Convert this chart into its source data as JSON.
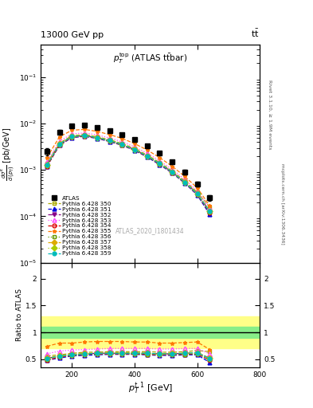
{
  "title_left": "13000 GeV pp",
  "title_right": "tt̅",
  "panel_title": "$p_T^{\\mathrm{top}}$ (ATLAS t$\\bar{\\mathrm{t}}$bar)",
  "xlabel": "$p_T^{t,1}$ [GeV]",
  "watermark": "ATLAS_2020_I1801434",
  "right_label_top": "Rivet 3.1.10, ≥ 1.9M events",
  "arxiv_label": "mcplots.cern.ch [arXiv:1306.3436]",
  "pt_bins": [
    120,
    160,
    200,
    240,
    280,
    320,
    360,
    400,
    440,
    480,
    520,
    560,
    600,
    640
  ],
  "atlas_vals": [
    0.0025,
    0.0065,
    0.009,
    0.0092,
    0.0082,
    0.007,
    0.0058,
    0.0045,
    0.0033,
    0.0023,
    0.0015,
    0.0009,
    0.0005,
    0.00025
  ],
  "atlas_err_lo": [
    0.0004,
    0.0007,
    0.0008,
    0.0008,
    0.0007,
    0.0006,
    0.0005,
    0.0004,
    0.0003,
    0.0002,
    0.00015,
    0.0001,
    6e-05,
    3e-05
  ],
  "atlas_err_hi": [
    0.0004,
    0.0007,
    0.0008,
    0.0008,
    0.0007,
    0.0006,
    0.0005,
    0.0004,
    0.0003,
    0.0002,
    0.00015,
    0.0001,
    6e-05,
    3e-05
  ],
  "models": [
    {
      "label": "Pythia 6.428 350",
      "color": "#aaaa00",
      "marker": "s",
      "markerfacecolor": "none",
      "linestyle": "--",
      "vals": [
        0.0014,
        0.0038,
        0.0055,
        0.0058,
        0.0052,
        0.0045,
        0.0037,
        0.0029,
        0.0021,
        0.00145,
        0.00095,
        0.00058,
        0.00033,
        0.00016
      ],
      "ratio": [
        0.56,
        0.58,
        0.61,
        0.63,
        0.63,
        0.64,
        0.64,
        0.64,
        0.64,
        0.63,
        0.63,
        0.64,
        0.66,
        0.64
      ]
    },
    {
      "label": "Pythia 6.428 351",
      "color": "#0000dd",
      "marker": "^",
      "markerfacecolor": "#0000dd",
      "linestyle": "--",
      "vals": [
        0.0012,
        0.0034,
        0.005,
        0.0053,
        0.0048,
        0.0041,
        0.0034,
        0.00265,
        0.0019,
        0.0013,
        0.00086,
        0.00052,
        0.00029,
        0.00011
      ],
      "ratio": [
        0.48,
        0.52,
        0.56,
        0.57,
        0.58,
        0.59,
        0.59,
        0.59,
        0.58,
        0.57,
        0.57,
        0.58,
        0.58,
        0.44
      ]
    },
    {
      "label": "Pythia 6.428 352",
      "color": "#880088",
      "marker": "v",
      "markerfacecolor": "#880088",
      "linestyle": "-.",
      "vals": [
        0.0013,
        0.0036,
        0.0052,
        0.0055,
        0.005,
        0.0043,
        0.00355,
        0.00275,
        0.002,
        0.00138,
        0.0009,
        0.00055,
        0.00031,
        0.00013
      ],
      "ratio": [
        0.52,
        0.55,
        0.58,
        0.6,
        0.61,
        0.61,
        0.61,
        0.61,
        0.61,
        0.6,
        0.6,
        0.61,
        0.62,
        0.52
      ]
    },
    {
      "label": "Pythia 6.428 353",
      "color": "#ff44ff",
      "marker": "^",
      "markerfacecolor": "none",
      "linestyle": ":",
      "vals": [
        0.0015,
        0.0042,
        0.006,
        0.0063,
        0.0057,
        0.0049,
        0.00405,
        0.00315,
        0.0023,
        0.00158,
        0.00103,
        0.00063,
        0.00035,
        0.00015
      ],
      "ratio": [
        0.6,
        0.65,
        0.67,
        0.68,
        0.69,
        0.7,
        0.7,
        0.7,
        0.7,
        0.69,
        0.69,
        0.7,
        0.7,
        0.6
      ]
    },
    {
      "label": "Pythia 6.428 354",
      "color": "#dd0000",
      "marker": "o",
      "markerfacecolor": "none",
      "linestyle": "--",
      "vals": [
        0.0012,
        0.0035,
        0.0051,
        0.0054,
        0.0049,
        0.0042,
        0.00345,
        0.00268,
        0.00195,
        0.00134,
        0.00088,
        0.00053,
        0.0003,
        0.00012
      ],
      "ratio": [
        0.48,
        0.54,
        0.57,
        0.59,
        0.6,
        0.6,
        0.6,
        0.6,
        0.59,
        0.58,
        0.59,
        0.59,
        0.6,
        0.48
      ]
    },
    {
      "label": "Pythia 6.428 355",
      "color": "#ff7700",
      "marker": "*",
      "markerfacecolor": "#ff7700",
      "linestyle": "--",
      "vals": [
        0.00185,
        0.0052,
        0.0072,
        0.0075,
        0.0068,
        0.0058,
        0.0048,
        0.0037,
        0.0027,
        0.00185,
        0.0012,
        0.00073,
        0.00041,
        0.00017
      ],
      "ratio": [
        0.74,
        0.8,
        0.8,
        0.82,
        0.83,
        0.83,
        0.83,
        0.82,
        0.82,
        0.8,
        0.8,
        0.81,
        0.82,
        0.68
      ]
    },
    {
      "label": "Pythia 6.428 356",
      "color": "#669900",
      "marker": "s",
      "markerfacecolor": "none",
      "linestyle": ":",
      "vals": [
        0.00125,
        0.00355,
        0.00515,
        0.00545,
        0.00492,
        0.00422,
        0.00348,
        0.0027,
        0.00196,
        0.00135,
        0.000885,
        0.000535,
        0.000302,
        0.000122
      ],
      "ratio": [
        0.5,
        0.55,
        0.57,
        0.59,
        0.6,
        0.6,
        0.6,
        0.6,
        0.59,
        0.59,
        0.59,
        0.59,
        0.6,
        0.49
      ]
    },
    {
      "label": "Pythia 6.428 357",
      "color": "#ddaa00",
      "marker": "D",
      "markerfacecolor": "#ddaa00",
      "linestyle": "--",
      "vals": [
        0.0013,
        0.0037,
        0.0053,
        0.0056,
        0.00505,
        0.00435,
        0.00358,
        0.00278,
        0.00202,
        0.00139,
        0.00091,
        0.00055,
        0.00031,
        0.00013
      ],
      "ratio": [
        0.52,
        0.57,
        0.59,
        0.61,
        0.61,
        0.62,
        0.62,
        0.62,
        0.61,
        0.6,
        0.61,
        0.61,
        0.62,
        0.52
      ]
    },
    {
      "label": "Pythia 6.428 358",
      "color": "#aacc00",
      "marker": "D",
      "markerfacecolor": "#aacc00",
      "linestyle": ":",
      "vals": [
        0.00128,
        0.00365,
        0.00525,
        0.00555,
        0.005,
        0.0043,
        0.00355,
        0.00276,
        0.002,
        0.00138,
        0.0009,
        0.000545,
        0.000308,
        0.000128
      ],
      "ratio": [
        0.51,
        0.56,
        0.58,
        0.6,
        0.61,
        0.61,
        0.61,
        0.61,
        0.61,
        0.6,
        0.6,
        0.61,
        0.62,
        0.51
      ]
    },
    {
      "label": "Pythia 6.428 359",
      "color": "#00bbbb",
      "marker": "o",
      "markerfacecolor": "#00bbbb",
      "linestyle": "--",
      "vals": [
        0.00128,
        0.00365,
        0.00525,
        0.00555,
        0.005,
        0.0043,
        0.00355,
        0.00276,
        0.002,
        0.00138,
        0.0009,
        0.000545,
        0.000308,
        0.000128
      ],
      "ratio": [
        0.51,
        0.56,
        0.58,
        0.6,
        0.61,
        0.61,
        0.61,
        0.61,
        0.61,
        0.6,
        0.6,
        0.61,
        0.62,
        0.51
      ]
    }
  ],
  "ratio_green_lo": 0.9,
  "ratio_green_hi": 1.1,
  "ratio_yellow_lo": 0.7,
  "ratio_yellow_hi": 1.3,
  "xlim": [
    100,
    800
  ],
  "xticks": [
    200,
    400,
    600,
    800
  ],
  "ylim_main": [
    1e-05,
    0.5
  ],
  "ylim_ratio": [
    0.35,
    2.3
  ],
  "ratio_yticks": [
    0.5,
    1.0,
    1.5,
    2.0
  ]
}
